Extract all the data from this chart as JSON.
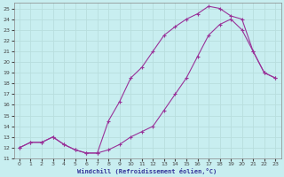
{
  "xlabel": "Windchill (Refroidissement éolien,°C)",
  "background_color": "#c8eef0",
  "grid_color": "#aadddd",
  "line_color": "#993399",
  "xlim": [
    -0.5,
    23.5
  ],
  "ylim": [
    11,
    25.5
  ],
  "xticks": [
    0,
    1,
    2,
    3,
    4,
    5,
    6,
    7,
    8,
    9,
    10,
    11,
    12,
    13,
    14,
    15,
    16,
    17,
    18,
    19,
    20,
    21,
    22,
    23
  ],
  "yticks": [
    11,
    12,
    13,
    14,
    15,
    16,
    17,
    18,
    19,
    20,
    21,
    22,
    23,
    24,
    25
  ],
  "line1_x": [
    0,
    1,
    2,
    3,
    4,
    5,
    6,
    7,
    8,
    9,
    10,
    11,
    12,
    13,
    14,
    15,
    16,
    17,
    18,
    19,
    20,
    21,
    22,
    23
  ],
  "line1_y": [
    12,
    12.5,
    12.5,
    13.0,
    12.3,
    11.8,
    11.5,
    11.5,
    11.8,
    12.3,
    13.0,
    13.5,
    14.0,
    15.5,
    17.0,
    18.5,
    20.5,
    22.5,
    23.5,
    24.0,
    23.0,
    21.0,
    19.0,
    18.5
  ],
  "line2_x": [
    0,
    1,
    2,
    3,
    4,
    5,
    6,
    7,
    8,
    9,
    10,
    11,
    12,
    13,
    14,
    15,
    16,
    17,
    18,
    19,
    20,
    21,
    22,
    23
  ],
  "line2_y": [
    12,
    12.5,
    12.5,
    13.0,
    12.3,
    11.8,
    11.5,
    11.5,
    14.5,
    16.3,
    18.5,
    19.5,
    21.0,
    22.5,
    23.3,
    24.0,
    24.5,
    25.2,
    25.0,
    24.3,
    24.0,
    21.0,
    19.0,
    18.5
  ],
  "marker": "+",
  "marker_size": 3,
  "linewidth": 0.8
}
